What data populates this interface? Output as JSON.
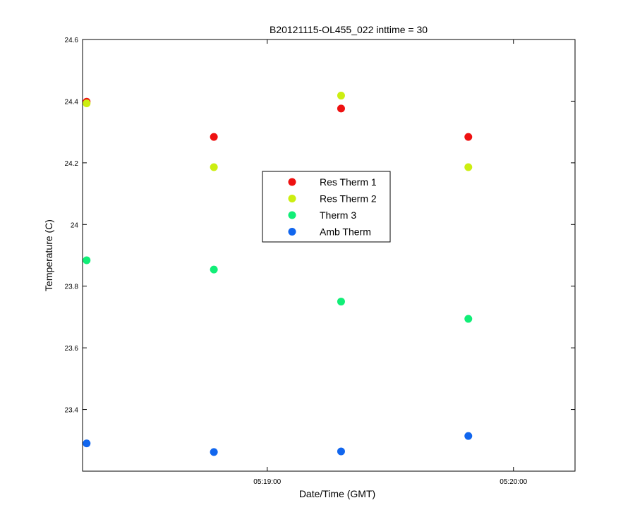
{
  "chart_data": {
    "type": "scatter",
    "title": "B20121115-OL455_022 inttime = 30",
    "xlabel": "Date/Time (GMT)",
    "ylabel": "Temperature (C)",
    "xlim": [
      "05:18:15",
      "05:20:15"
    ],
    "ylim": [
      23.2,
      24.6
    ],
    "x_ticks": [
      {
        "value": "05:19:00",
        "label": "05:19:00"
      },
      {
        "value": "05:20:00",
        "label": "05:20:00"
      }
    ],
    "y_ticks": [
      {
        "value": 23.4,
        "label": "23.4"
      },
      {
        "value": 23.6,
        "label": "23.6"
      },
      {
        "value": 23.8,
        "label": "23.8"
      },
      {
        "value": 24.0,
        "label": "24"
      },
      {
        "value": 24.2,
        "label": "24.2"
      },
      {
        "value": 24.4,
        "label": "24.4"
      },
      {
        "value": 24.6,
        "label": "24.6"
      }
    ],
    "grid": false,
    "legend_position": "center",
    "x": [
      "05:18:16",
      "05:18:47",
      "05:19:18",
      "05:19:49"
    ],
    "series": [
      {
        "name": "Res Therm 1",
        "color": "#ee1111",
        "values": [
          24.398,
          24.284,
          24.376,
          24.284
        ]
      },
      {
        "name": "Res Therm 2",
        "color": "#ccee11",
        "values": [
          24.393,
          24.186,
          24.418,
          24.186
        ]
      },
      {
        "name": "Therm 3",
        "color": "#11ee77",
        "values": [
          23.884,
          23.854,
          23.75,
          23.694
        ]
      },
      {
        "name": "Amb Therm",
        "color": "#1166ee",
        "values": [
          23.29,
          23.262,
          23.264,
          23.314
        ]
      }
    ]
  }
}
